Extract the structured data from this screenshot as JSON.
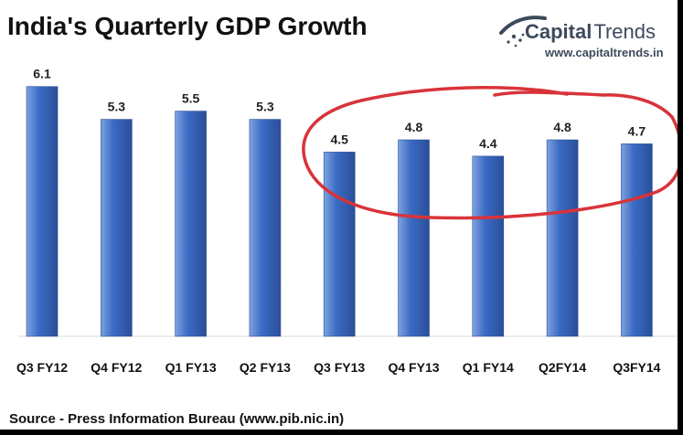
{
  "header": {
    "title": "India's Quarterly GDP Growth"
  },
  "brand": {
    "name_strong": "Capital",
    "name_light": "Trends",
    "url": "www.capitaltrends.in",
    "logo_icon": "swoosh-dots-icon"
  },
  "footer": {
    "source": "Source - Press Information Bureau (www.pib.nic.in)"
  },
  "colors": {
    "bar_top": "#7fa3df",
    "bar_mid": "#3b6bc5",
    "bar_bottom": "#2a4f98",
    "annotation": "#d9333a",
    "background": "#ffffff"
  },
  "chart_data": {
    "type": "bar",
    "title": "India's Quarterly GDP Growth",
    "categories": [
      "Q3 FY12",
      "Q4 FY12",
      "Q1 FY13",
      "Q2 FY13",
      "Q3 FY13",
      "Q4 FY13",
      "Q1 FY14",
      "Q2FY14",
      "Q3FY14"
    ],
    "values": [
      6.1,
      5.3,
      5.5,
      5.3,
      4.5,
      4.8,
      4.4,
      4.8,
      4.7
    ],
    "data_labels": [
      "6.1",
      "5.3",
      "5.5",
      "5.3",
      "4.5",
      "4.8",
      "4.4",
      "4.8",
      "4.7"
    ],
    "xlabel": "",
    "ylabel": "",
    "ylim": [
      0,
      6.5
    ],
    "grid": false,
    "legend": "none",
    "annotation": "hand-drawn red circle around Q3 FY13 to Q3FY14"
  }
}
